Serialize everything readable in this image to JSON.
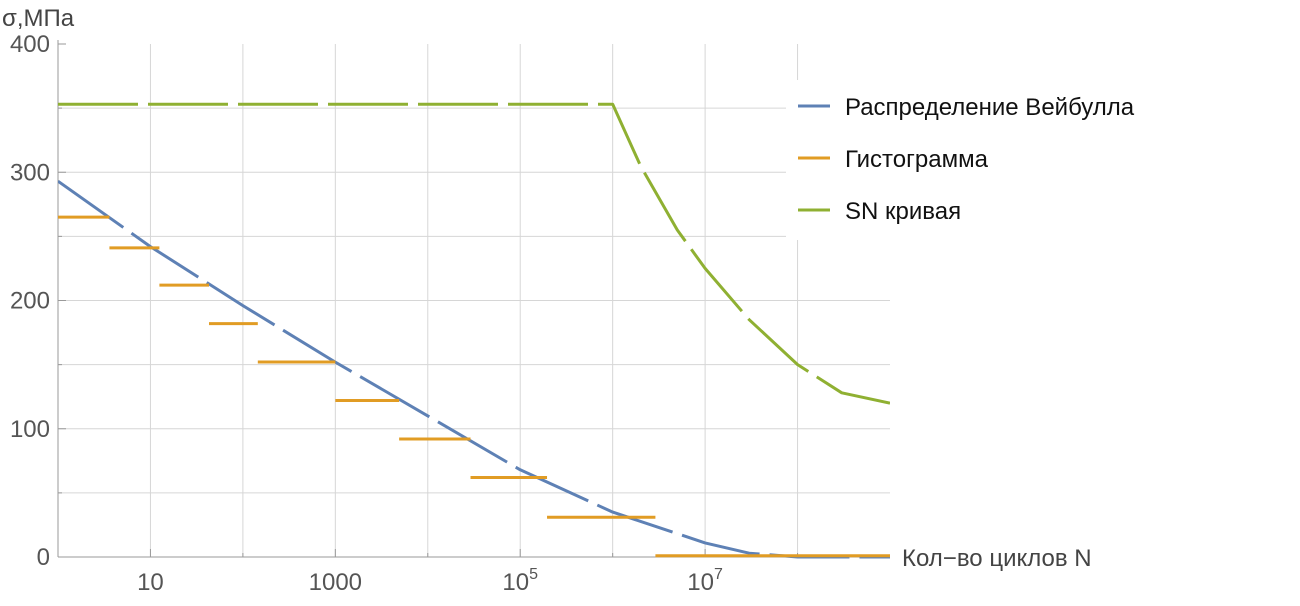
{
  "chart_data": {
    "type": "line",
    "title": "",
    "xlabel": "Кол−во циклов N",
    "ylabel": "σ,МПа",
    "x_scale": "log10",
    "xlim": [
      1,
      1000000000
    ],
    "ylim": [
      0,
      400
    ],
    "x_major_ticks": [
      10,
      1000,
      100000,
      10000000
    ],
    "x_tick_labels": [
      {
        "base": "10",
        "exp": ""
      },
      {
        "base": "1000",
        "exp": ""
      },
      {
        "base": "10",
        "exp": "5"
      },
      {
        "base": "10",
        "exp": "7"
      }
    ],
    "y_ticks": [
      0,
      100,
      200,
      300,
      400
    ],
    "y_tick_labels": [
      "0",
      "100",
      "200",
      "300",
      "400"
    ],
    "grid": true,
    "legend_position": "top-right",
    "series": [
      {
        "name": "Распределение Вейбулла",
        "color": "#5e81b5",
        "dashed": true,
        "points": [
          [
            1,
            293
          ],
          [
            10,
            242
          ],
          [
            100,
            196
          ],
          [
            1000,
            152
          ],
          [
            10000,
            110
          ],
          [
            100000,
            68
          ],
          [
            1000000,
            35
          ],
          [
            10000000,
            11
          ],
          [
            30000000,
            3
          ],
          [
            100000000,
            0
          ],
          [
            1000000000,
            0
          ]
        ]
      },
      {
        "name": "Гистограмма",
        "color": "#e19c24",
        "steps": [
          {
            "x0": 1,
            "x1": 3.6,
            "y": 265
          },
          {
            "x0": 3.6,
            "x1": 12.5,
            "y": 241
          },
          {
            "x0": 12.5,
            "x1": 43,
            "y": 212
          },
          {
            "x0": 43,
            "x1": 145,
            "y": 182
          },
          {
            "x0": 145,
            "x1": 1000,
            "y": 152
          },
          {
            "x0": 1000,
            "x1": 4900,
            "y": 122
          },
          {
            "x0": 4900,
            "x1": 29000,
            "y": 92
          },
          {
            "x0": 29000,
            "x1": 195000,
            "y": 62
          },
          {
            "x0": 195000,
            "x1": 2900000,
            "y": 31
          },
          {
            "x0": 2900000,
            "x1": 1000000000,
            "y": 1
          }
        ]
      },
      {
        "name": "SN кривая",
        "color": "#8fb032",
        "dashed": true,
        "points": [
          [
            1,
            353
          ],
          [
            1000000,
            353
          ],
          [
            2000000,
            305
          ],
          [
            5000000,
            255
          ],
          [
            10000000,
            225
          ],
          [
            30000000,
            185
          ],
          [
            100000000,
            150
          ],
          [
            300000000,
            128
          ],
          [
            1000000000,
            120
          ]
        ]
      }
    ]
  }
}
